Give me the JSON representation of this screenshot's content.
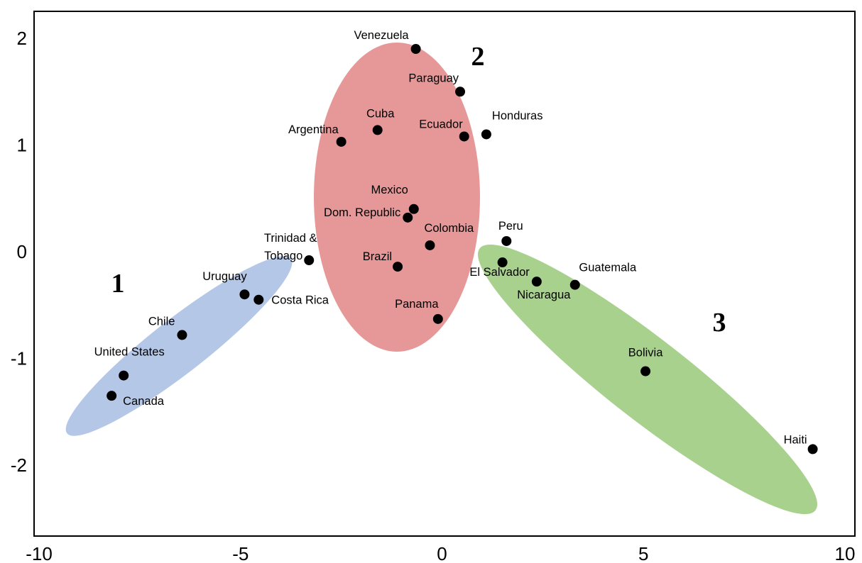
{
  "chart_data": {
    "type": "scatter",
    "title": "",
    "xlabel": "",
    "ylabel": "",
    "xlim": [
      -10,
      10
    ],
    "ylim": [
      -2.25,
      2.25
    ],
    "grid": false,
    "x_ticks": [
      -10,
      -5,
      0,
      5,
      10
    ],
    "x_tick_labels": [
      "-10",
      "-5",
      "0",
      "5",
      "10"
    ],
    "y_ticks": [
      -2,
      -1,
      0,
      1,
      2
    ],
    "y_tick_labels": [
      "-2",
      "-1",
      "0",
      "1",
      "2"
    ],
    "points": [
      {
        "label": "Venezuela",
        "x": -0.65,
        "y": 1.9,
        "cluster": 2
      },
      {
        "label": "Paraguay",
        "x": 0.45,
        "y": 1.5,
        "cluster": 2
      },
      {
        "label": "Cuba",
        "x": -1.6,
        "y": 1.14,
        "cluster": 2
      },
      {
        "label": "Ecuador",
        "x": 0.55,
        "y": 1.08,
        "cluster": 2
      },
      {
        "label": "Honduras",
        "x": 1.1,
        "y": 1.1,
        "cluster": 2
      },
      {
        "label": "Argentina",
        "x": -2.5,
        "y": 1.03,
        "cluster": 2
      },
      {
        "label": "Mexico",
        "x": -0.7,
        "y": 0.4,
        "cluster": 2
      },
      {
        "label": "Dom. Republic",
        "x": -0.85,
        "y": 0.32,
        "cluster": 2
      },
      {
        "label": "Colombia",
        "x": -0.3,
        "y": 0.06,
        "cluster": 2
      },
      {
        "label": "Brazil",
        "x": -1.1,
        "y": -0.14,
        "cluster": 2
      },
      {
        "label": "Panama",
        "x": -0.1,
        "y": -0.63,
        "cluster": 2
      },
      {
        "label": "Trinidad & Tobago",
        "x": -3.3,
        "y": -0.08,
        "cluster": 1
      },
      {
        "label": "Uruguay",
        "x": -4.9,
        "y": -0.4,
        "cluster": 1
      },
      {
        "label": "Costa Rica",
        "x": -4.55,
        "y": -0.45,
        "cluster": 1
      },
      {
        "label": "Chile",
        "x": -6.45,
        "y": -0.78,
        "cluster": 1
      },
      {
        "label": "United States",
        "x": -7.9,
        "y": -1.16,
        "cluster": 1
      },
      {
        "label": "Canada",
        "x": -8.2,
        "y": -1.35,
        "cluster": 1
      },
      {
        "label": "Peru",
        "x": 1.6,
        "y": 0.1,
        "cluster": 3
      },
      {
        "label": "El Salvador",
        "x": 1.5,
        "y": -0.1,
        "cluster": 3
      },
      {
        "label": "Nicaragua",
        "x": 2.35,
        "y": -0.28,
        "cluster": 3
      },
      {
        "label": "Guatemala",
        "x": 3.3,
        "y": -0.31,
        "cluster": 3
      },
      {
        "label": "Bolivia",
        "x": 5.05,
        "y": -1.12,
        "cluster": 3
      },
      {
        "label": "Haiti",
        "x": 9.2,
        "y": -1.85,
        "cluster": 3
      }
    ],
    "clusters": [
      {
        "id": 1,
        "label": "1",
        "color": "#b4c7e7"
      },
      {
        "id": 2,
        "label": "2",
        "color": "#e69898"
      },
      {
        "id": 3,
        "label": "3",
        "color": "#a9d18e"
      }
    ]
  }
}
